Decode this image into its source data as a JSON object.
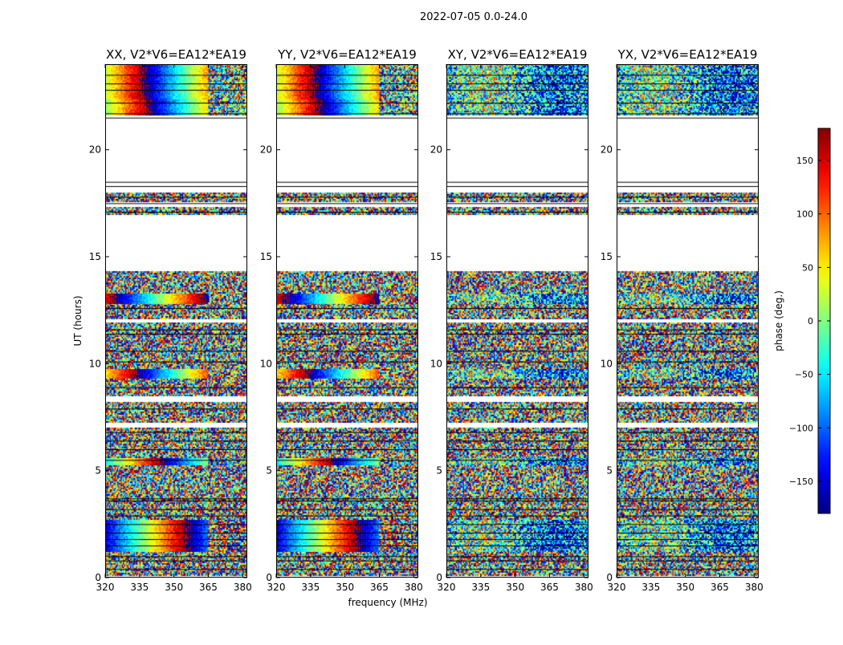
{
  "chart_data": {
    "type": "heatmap",
    "suptitle": "2022-07-05 0.0-24.0",
    "xlabel": "frequency (MHz)",
    "ylabel": "UT (hours)",
    "xlim": [
      320,
      382
    ],
    "ylim": [
      0,
      24
    ],
    "xticks": [
      320,
      335,
      350,
      365,
      380
    ],
    "xtick_labels": [
      "320",
      "335",
      "350",
      "365",
      "380"
    ],
    "yticks": [
      0,
      5,
      10,
      15,
      20
    ],
    "ytick_labels": [
      "0",
      "5",
      "10",
      "15",
      "20"
    ],
    "panels": [
      {
        "title": "XX, V2*V6=EA12*EA19",
        "fringe": true,
        "fringe_strength": 1.0
      },
      {
        "title": "YY, V2*V6=EA12*EA19",
        "fringe": true,
        "fringe_strength": 1.0
      },
      {
        "title": "XY, V2*V6=EA12*EA19",
        "fringe": false,
        "fringe_strength": 0.15
      },
      {
        "title": "YX, V2*V6=EA12*EA19",
        "fringe": false,
        "fringe_strength": 0.15
      }
    ],
    "data_bands_ut": [
      [
        0.1,
        1.2,
        "noise"
      ],
      [
        1.2,
        2.7,
        "fringe"
      ],
      [
        2.7,
        3.5,
        "noise"
      ],
      [
        3.5,
        5.3,
        "noise"
      ],
      [
        5.3,
        5.6,
        "fringe"
      ],
      [
        5.6,
        7.0,
        "noise"
      ],
      [
        7.3,
        8.2,
        "noise"
      ],
      [
        8.5,
        9.3,
        "noise"
      ],
      [
        9.3,
        9.8,
        "fringe"
      ],
      [
        9.8,
        11.9,
        "noise"
      ],
      [
        12.1,
        12.8,
        "noise"
      ],
      [
        12.8,
        13.3,
        "fringe"
      ],
      [
        13.3,
        14.3,
        "noise"
      ],
      [
        17.0,
        17.3,
        "noise"
      ],
      [
        17.6,
        18.0,
        "noise"
      ],
      [
        21.6,
        22.4,
        "fringe"
      ],
      [
        22.4,
        24.0,
        "fringe"
      ]
    ],
    "flag_lines_ut": [
      0.4,
      0.8,
      1.0,
      1.5,
      1.8,
      2.1,
      2.5,
      2.9,
      3.2,
      3.6,
      3.7,
      5.5,
      6.0,
      6.4,
      6.8,
      7.9,
      8.9,
      10.1,
      10.6,
      11.4,
      11.6,
      12.6,
      17.1,
      17.5,
      17.8,
      18.3,
      18.5,
      21.5,
      21.7,
      22.2,
      22.8,
      23.1,
      23.5
    ],
    "colorbar": {
      "label": "phase (deg.)",
      "range": [
        -180,
        180
      ],
      "ticks": [
        150,
        100,
        50,
        0,
        -50,
        -100,
        -150
      ],
      "tick_labels": [
        "150",
        "100",
        "50",
        "0",
        "−50",
        "−100",
        "−150"
      ],
      "colormap": "jet"
    }
  }
}
